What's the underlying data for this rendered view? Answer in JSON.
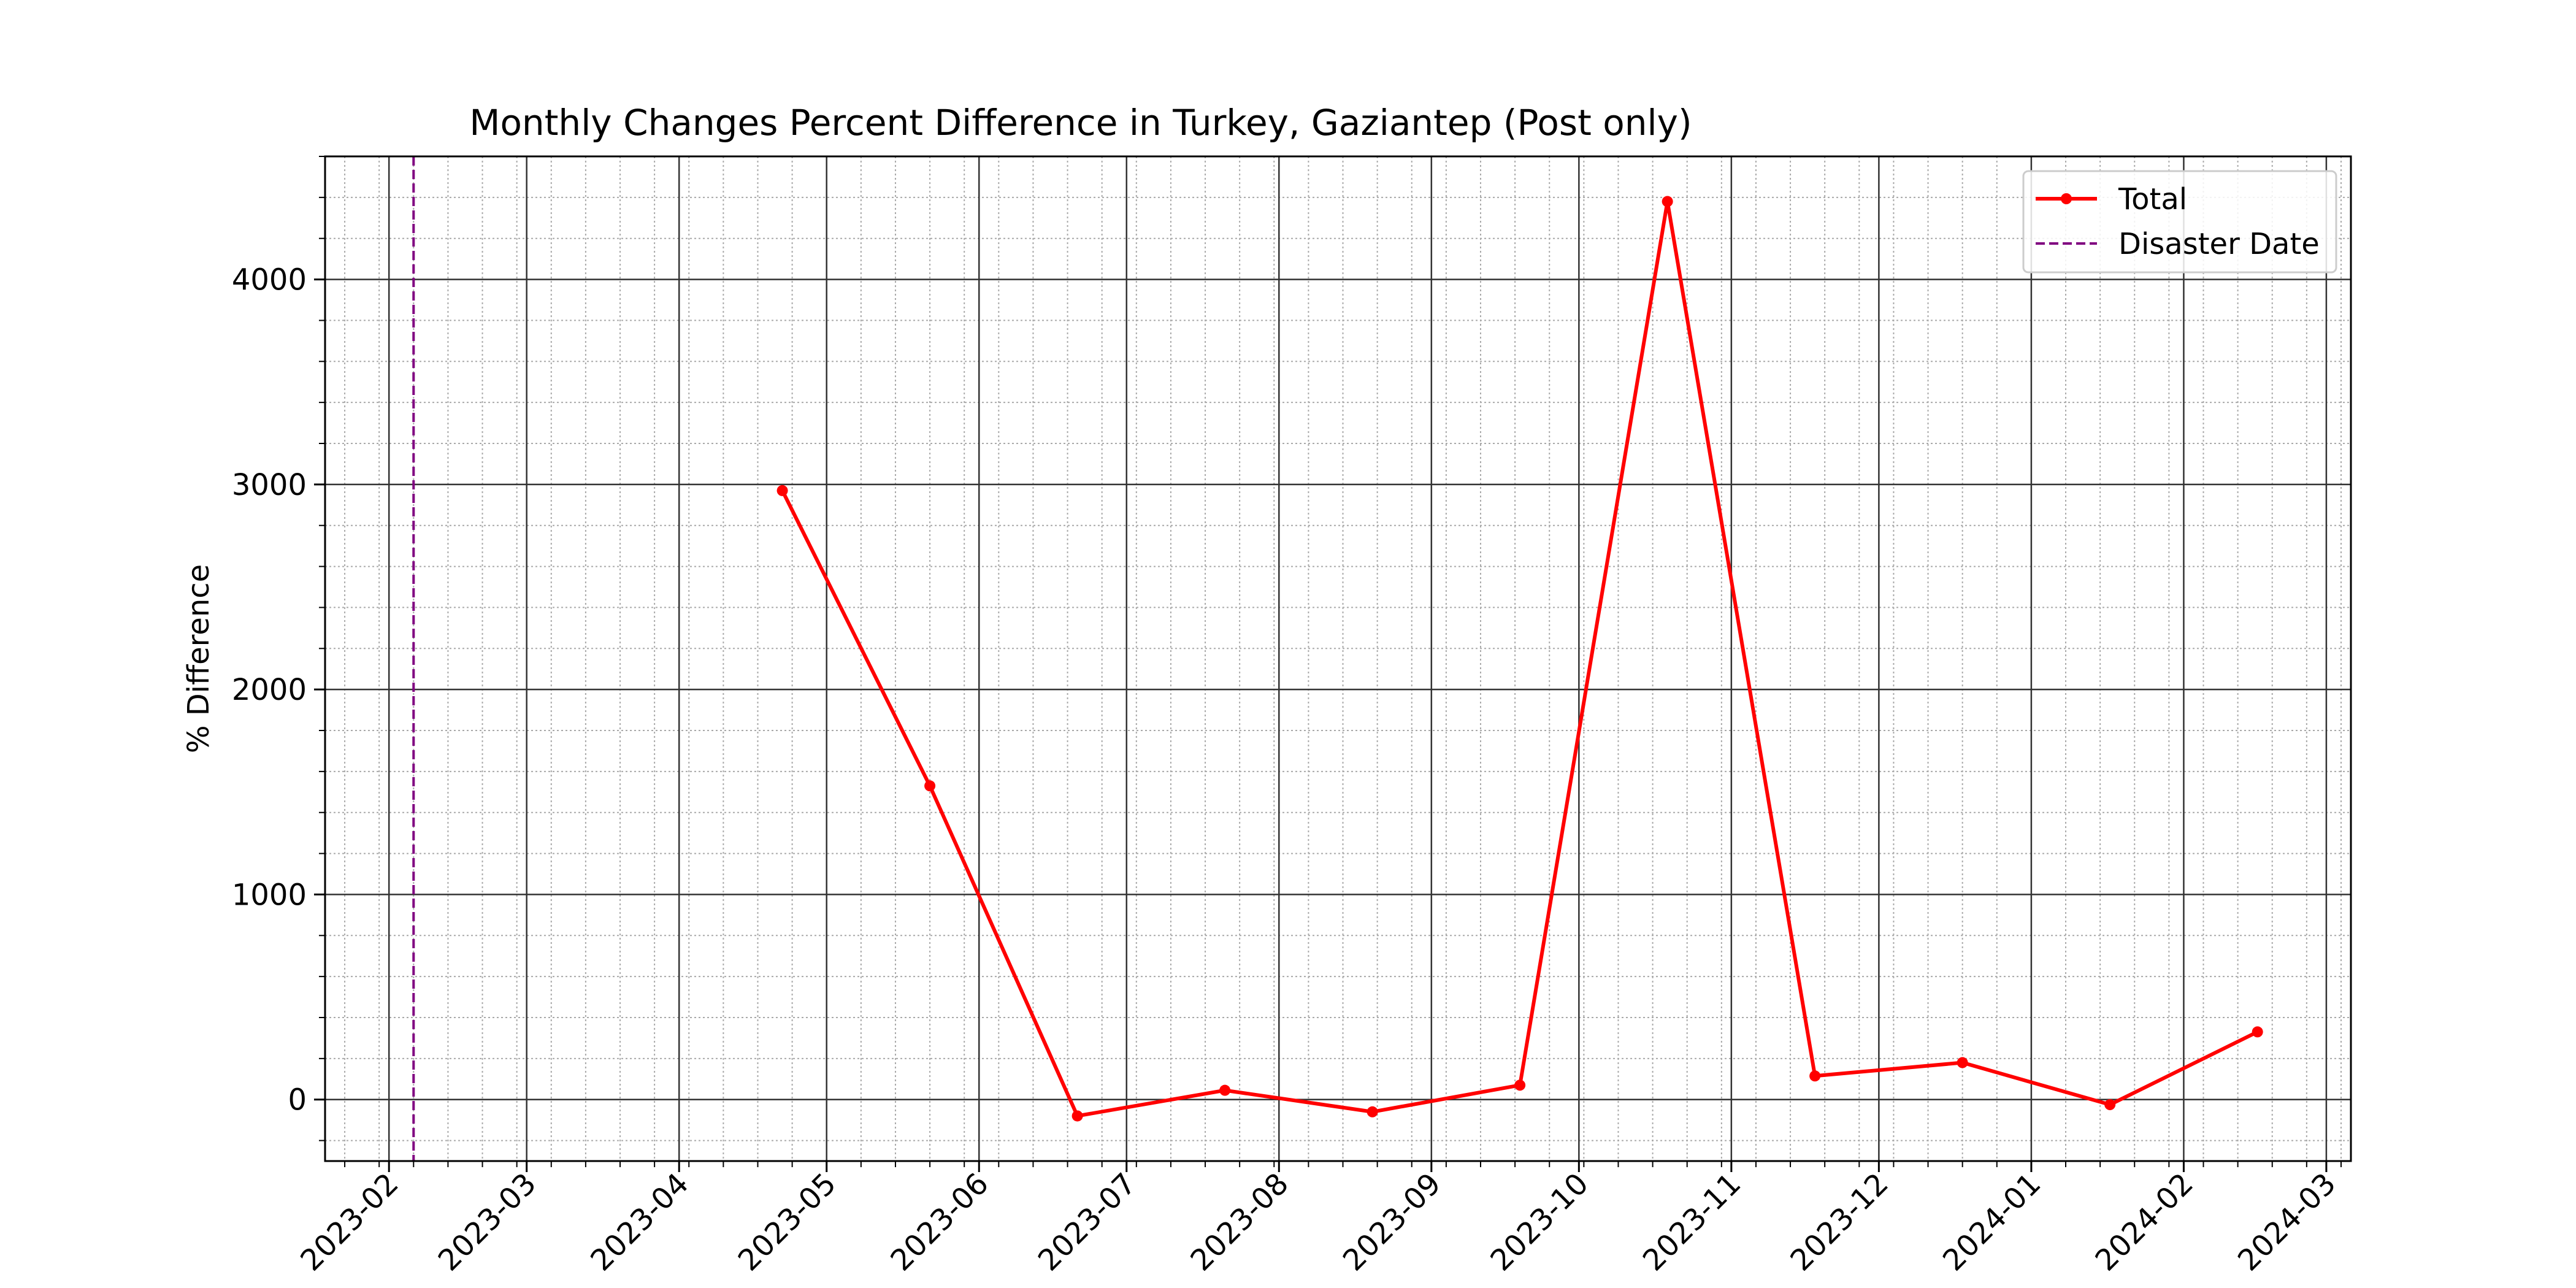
{
  "chart_data": {
    "type": "line",
    "title": "Monthly Changes Percent Difference in Turkey, Gaziantep (Post only)",
    "xlabel": "",
    "ylabel": "% Difference",
    "xlim": [
      "2023-01-19",
      "2024-03-06"
    ],
    "ylim": [
      -300,
      4600
    ],
    "x_ticks": [
      "2023-02-01",
      "2023-03-01",
      "2023-04-01",
      "2023-05-01",
      "2023-06-01",
      "2023-07-01",
      "2023-08-01",
      "2023-09-01",
      "2023-10-01",
      "2023-11-01",
      "2023-12-01",
      "2024-01-01",
      "2024-02-01",
      "2024-03-01"
    ],
    "x_tick_labels": [
      "2023-02",
      "2023-03",
      "2023-04",
      "2023-05",
      "2023-06",
      "2023-07",
      "2023-08",
      "2023-09",
      "2023-10",
      "2023-11",
      "2023-12",
      "2024-01",
      "2024-02",
      "2024-03"
    ],
    "y_ticks": [
      0,
      1000,
      2000,
      3000,
      4000
    ],
    "y_tick_labels": [
      "0",
      "1000",
      "2000",
      "3000",
      "4000"
    ],
    "grid": true,
    "legend_position": "top-right",
    "series": [
      {
        "name": "Total",
        "color": "#ff0000",
        "marker": "circle",
        "x": [
          "2023-04-22",
          "2023-05-22",
          "2023-06-21",
          "2023-07-21",
          "2023-08-20",
          "2023-09-19",
          "2023-10-19",
          "2023-11-18",
          "2023-12-18",
          "2024-01-17",
          "2024-02-16"
        ],
        "y": [
          2970,
          1530,
          -80,
          45,
          -60,
          70,
          4380,
          115,
          180,
          -25,
          330
        ]
      }
    ],
    "vlines": [
      {
        "name": "Disaster Date",
        "x": "2023-02-06",
        "color": "#800080",
        "style": "dashed"
      }
    ]
  }
}
